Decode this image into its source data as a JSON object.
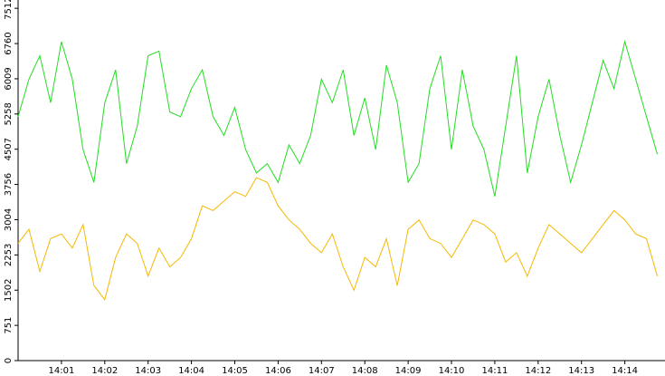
{
  "chart_data": {
    "type": "line",
    "categories": [
      null,
      null,
      null,
      null,
      "14:01",
      null,
      null,
      null,
      "14:02",
      null,
      null,
      null,
      "14:03",
      null,
      null,
      null,
      "14:04",
      null,
      null,
      null,
      "14:05",
      null,
      null,
      null,
      "14:06",
      null,
      null,
      null,
      "14:07",
      null,
      null,
      null,
      "14:08",
      null,
      null,
      null,
      "14:09",
      null,
      null,
      null,
      "14:10",
      null,
      null,
      null,
      "14:11",
      null,
      null,
      null,
      "14:12",
      null,
      null,
      null,
      "14:13",
      null,
      null,
      null,
      "14:14",
      null,
      null,
      null
    ],
    "series": [
      {
        "color": "#22dd22",
        "values": [
          5200,
          6000,
          6500,
          5500,
          6800,
          6000,
          4500,
          3800,
          5500,
          6200,
          4200,
          5000,
          6500,
          6600,
          5300,
          5200,
          5800,
          6200,
          5200,
          4800,
          5400,
          4500,
          4000,
          4200,
          3800,
          4600,
          4200,
          4800,
          6000,
          5500,
          6200,
          4800,
          5600,
          4500,
          6300,
          5500,
          3800,
          4200,
          5800,
          6500,
          4500,
          6200,
          5000,
          4500,
          3500,
          5000,
          6500,
          4000,
          5200,
          6000,
          4800,
          3800,
          4600,
          5500,
          6400,
          5800,
          6800,
          6000,
          5200,
          4400
        ]
      },
      {
        "color": "#f5b800",
        "values": [
          2500,
          2800,
          1900,
          2600,
          2700,
          2400,
          2900,
          1600,
          1300,
          2200,
          2700,
          2500,
          1800,
          2400,
          2000,
          2200,
          2600,
          3300,
          3200,
          3400,
          3600,
          3500,
          3900,
          3800,
          3300,
          3000,
          2800,
          2500,
          2300,
          2700,
          2000,
          1500,
          2200,
          2000,
          2600,
          1600,
          2800,
          3000,
          2600,
          2500,
          2200,
          2600,
          3000,
          2900,
          2700,
          2100,
          2300,
          1800,
          2400,
          2900,
          2700,
          2500,
          2300,
          2600,
          2900,
          3200,
          3000,
          2700,
          2600,
          1800
        ]
      }
    ],
    "ylim": [
      0,
      7650
    ],
    "yticks": [
      0,
      751,
      1502,
      2253,
      3004,
      3756,
      4507,
      5258,
      6009,
      6760,
      7512
    ]
  }
}
